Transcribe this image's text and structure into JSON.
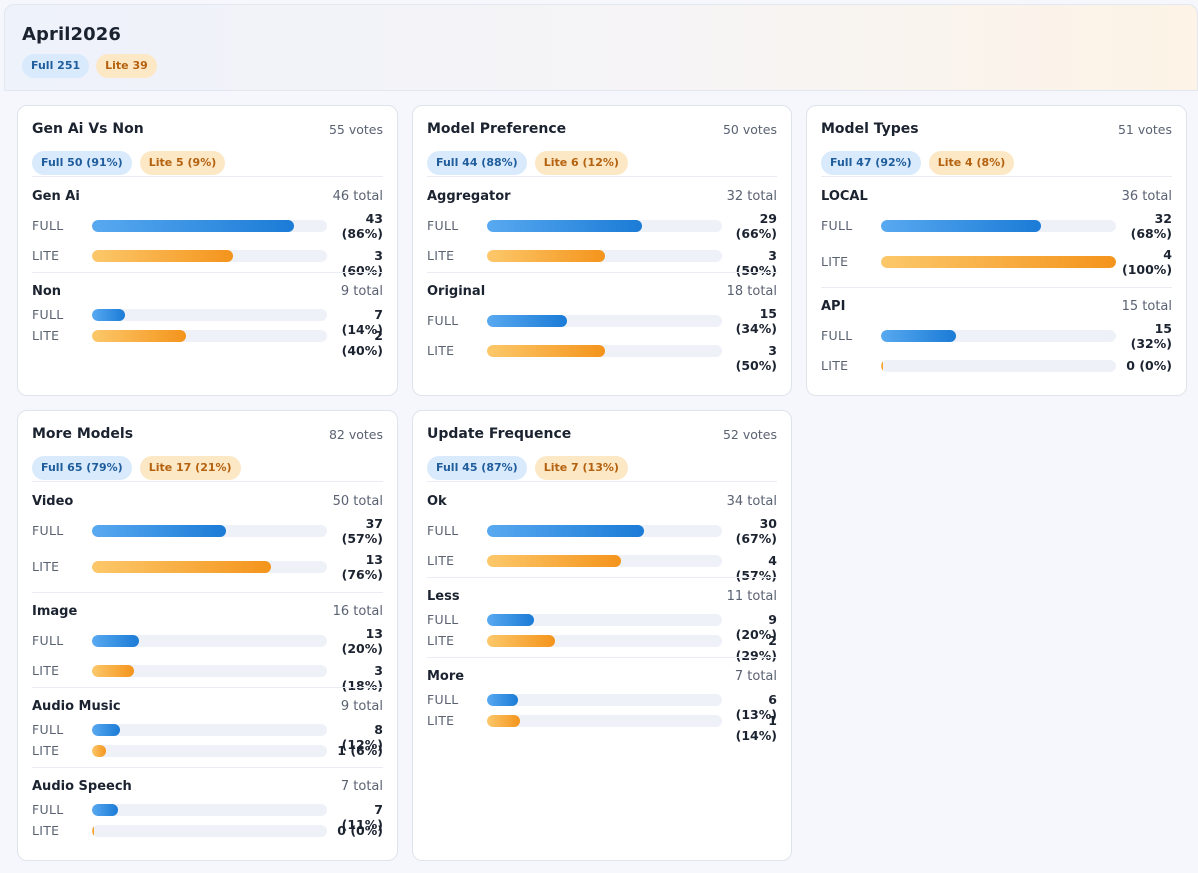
{
  "header": {
    "title": "April2026",
    "full_badge": "Full 251",
    "lite_badge": "Lite 39"
  },
  "colors": {
    "full": "#1b7bd6",
    "lite": "#f4941c",
    "full_badge_bg": "#d9eafc",
    "lite_badge_bg": "#fde8c6"
  },
  "row_labels": {
    "full": "FULL",
    "lite": "LITE"
  },
  "cards": [
    {
      "title": "Gen Ai Vs Non",
      "votes": "55 votes",
      "full_badge": "Full 50 (91%)",
      "lite_badge": "Lite 5 (9%)",
      "questions": [
        {
          "name": "Gen Ai",
          "total": "46 total",
          "full": {
            "pct": 86,
            "label": "43 (86%)"
          },
          "lite": {
            "pct": 60,
            "label": "3 (60%)"
          }
        },
        {
          "name": "Non",
          "total": "9 total",
          "full": {
            "pct": 14,
            "label": "7 (14%)"
          },
          "lite": {
            "pct": 40,
            "label": "2 (40%)"
          }
        }
      ]
    },
    {
      "title": "Model Preference",
      "votes": "50 votes",
      "full_badge": "Full 44 (88%)",
      "lite_badge": "Lite 6 (12%)",
      "questions": [
        {
          "name": "Aggregator",
          "total": "32 total",
          "full": {
            "pct": 66,
            "label": "29 (66%)"
          },
          "lite": {
            "pct": 50,
            "label": "3 (50%)"
          }
        },
        {
          "name": "Original",
          "total": "18 total",
          "full": {
            "pct": 34,
            "label": "15 (34%)"
          },
          "lite": {
            "pct": 50,
            "label": "3 (50%)"
          }
        }
      ]
    },
    {
      "title": "Model Types",
      "votes": "51 votes",
      "full_badge": "Full 47 (92%)",
      "lite_badge": "Lite 4 (8%)",
      "questions": [
        {
          "name": "LOCAL",
          "total": "36 total",
          "full": {
            "pct": 68,
            "label": "32 (68%)"
          },
          "lite": {
            "pct": 100,
            "label": "4 (100%)"
          }
        },
        {
          "name": "API",
          "total": "15 total",
          "full": {
            "pct": 32,
            "label": "15 (32%)"
          },
          "lite": {
            "pct": 0,
            "label": "0 (0%)"
          }
        }
      ]
    },
    {
      "title": "More Models",
      "votes": "82 votes",
      "full_badge": "Full 65 (79%)",
      "lite_badge": "Lite 17 (21%)",
      "questions": [
        {
          "name": "Video",
          "total": "50 total",
          "full": {
            "pct": 57,
            "label": "37 (57%)"
          },
          "lite": {
            "pct": 76,
            "label": "13 (76%)"
          }
        },
        {
          "name": "Image",
          "total": "16 total",
          "full": {
            "pct": 20,
            "label": "13 (20%)"
          },
          "lite": {
            "pct": 18,
            "label": "3 (18%)"
          }
        },
        {
          "name": "Audio Music",
          "total": "9 total",
          "full": {
            "pct": 12,
            "label": "8 (12%)"
          },
          "lite": {
            "pct": 6,
            "label": "1 (6%)"
          }
        },
        {
          "name": "Audio Speech",
          "total": "7 total",
          "full": {
            "pct": 11,
            "label": "7 (11%)"
          },
          "lite": {
            "pct": 0,
            "label": "0 (0%)"
          }
        }
      ]
    },
    {
      "title": "Update Frequence",
      "votes": "52 votes",
      "full_badge": "Full 45 (87%)",
      "lite_badge": "Lite 7 (13%)",
      "questions": [
        {
          "name": "Ok",
          "total": "34 total",
          "full": {
            "pct": 67,
            "label": "30 (67%)"
          },
          "lite": {
            "pct": 57,
            "label": "4 (57%)"
          }
        },
        {
          "name": "Less",
          "total": "11 total",
          "full": {
            "pct": 20,
            "label": "9 (20%)"
          },
          "lite": {
            "pct": 29,
            "label": "2 (29%)"
          }
        },
        {
          "name": "More",
          "total": "7 total",
          "full": {
            "pct": 13,
            "label": "6 (13%)"
          },
          "lite": {
            "pct": 14,
            "label": "1 (14%)"
          }
        }
      ]
    }
  ]
}
